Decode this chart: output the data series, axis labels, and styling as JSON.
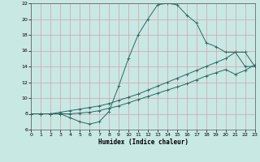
{
  "xlabel": "Humidex (Indice chaleur)",
  "xlim": [
    0,
    23
  ],
  "ylim": [
    6,
    22
  ],
  "xticks": [
    0,
    1,
    2,
    3,
    4,
    5,
    6,
    7,
    8,
    9,
    10,
    11,
    12,
    13,
    14,
    15,
    16,
    17,
    18,
    19,
    20,
    21,
    22,
    23
  ],
  "yticks": [
    6,
    8,
    10,
    12,
    14,
    16,
    18,
    20,
    22
  ],
  "bg_color": "#c8e8e4",
  "grid_color": "#d4a0a8",
  "line_color": "#2a6860",
  "curve_max_x": [
    0,
    1,
    2,
    3,
    4,
    5,
    6,
    7,
    8,
    9,
    10,
    11,
    12,
    13,
    14,
    15,
    16,
    17,
    18,
    19,
    20,
    21,
    22,
    23
  ],
  "curve_max_y": [
    8.0,
    8.0,
    8.0,
    8.0,
    7.5,
    7.0,
    6.7,
    7.0,
    8.3,
    11.5,
    15.0,
    18.0,
    20.0,
    21.8,
    22.0,
    21.8,
    20.5,
    19.5,
    17.0,
    16.5,
    15.8,
    15.8,
    14.0,
    14.0
  ],
  "curve_avg_x": [
    0,
    1,
    2,
    3,
    4,
    5,
    6,
    7,
    8,
    9,
    10,
    11,
    12,
    13,
    14,
    15,
    16,
    17,
    18,
    19,
    20,
    21,
    22,
    23
  ],
  "curve_avg_y": [
    8.0,
    8.0,
    8.0,
    8.2,
    8.4,
    8.6,
    8.8,
    9.0,
    9.3,
    9.7,
    10.1,
    10.5,
    11.0,
    11.5,
    12.0,
    12.5,
    13.0,
    13.5,
    14.0,
    14.5,
    15.0,
    15.8,
    15.8,
    14.0
  ],
  "curve_min_x": [
    0,
    1,
    2,
    3,
    4,
    5,
    6,
    7,
    8,
    9,
    10,
    11,
    12,
    13,
    14,
    15,
    16,
    17,
    18,
    19,
    20,
    21,
    22,
    23
  ],
  "curve_min_y": [
    8.0,
    8.0,
    8.0,
    8.0,
    8.0,
    8.1,
    8.2,
    8.4,
    8.7,
    9.0,
    9.4,
    9.8,
    10.2,
    10.6,
    11.0,
    11.4,
    11.8,
    12.3,
    12.8,
    13.2,
    13.6,
    13.0,
    13.5,
    14.2
  ]
}
